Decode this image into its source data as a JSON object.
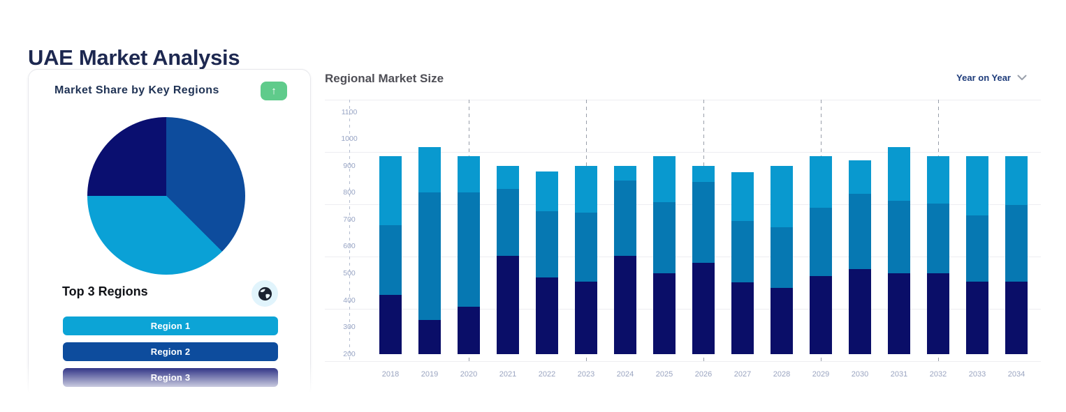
{
  "page": {
    "title": "UAE Market Analysis"
  },
  "market_share_card": {
    "title": "Market Share by Key Regions",
    "expand_icon": "↑",
    "subtitle": "Top 3 Regions",
    "region_buttons": [
      {
        "label": "Region 1",
        "color": "#0ca4d6"
      },
      {
        "label": "Region 2",
        "color": "#0d4c9d"
      },
      {
        "label": "Region 3",
        "color": "#0a0f70"
      }
    ]
  },
  "market_size_panel": {
    "title": "Regional Market Size",
    "dropdown_label": "Year on Year"
  },
  "colors": {
    "heading_navy": "#1d2850",
    "green_button": "#5fcb8b",
    "globe_bg": "#e1f4fc",
    "pie_blue": "#0d4c9d",
    "pie_cyan": "#0aa1d6",
    "pie_navy": "#0a0f70",
    "bar_cyan": "#0999cf",
    "bar_blue": "#0678b2",
    "bar_navy": "#0a0e68",
    "axis_label": "#97a4c4",
    "gridline": "#ededf1"
  },
  "chart_data": [
    {
      "type": "pie",
      "title": "Market Share by Key Regions",
      "legend_position": "none",
      "slices_clockwise_from_top": [
        {
          "label": "Region 2",
          "percent": 37.5,
          "color": "#0d4c9d"
        },
        {
          "label": "Region 1",
          "percent": 37.5,
          "color": "#0aa1d6"
        },
        {
          "label": "Region 3",
          "percent": 25.0,
          "color": "#0a0f70"
        }
      ]
    },
    {
      "type": "bar",
      "stacked": true,
      "title": "Regional Market Size",
      "xlabel": "",
      "ylabel": "",
      "baseline": 200,
      "ylim": [
        200,
        1100
      ],
      "y_ticks": [
        200,
        300,
        400,
        500,
        600,
        700,
        800,
        900,
        1000,
        1100
      ],
      "grid": "light horizontal lines; dashed vertical year guides; dashed y-axis",
      "legend_position": "none",
      "dashed_guide_years": [
        "2020",
        "2023",
        "2026",
        "2029",
        "2032"
      ],
      "categories": [
        "2018",
        "2019",
        "2020",
        "2021",
        "2022",
        "2023",
        "2024",
        "2025",
        "2026",
        "2027",
        "2028",
        "2029",
        "2030",
        "2031",
        "2032",
        "2033",
        "2034"
      ],
      "series": [
        {
          "name": "bottom-segment-navy",
          "color": "#0a0e68",
          "values": [
            220,
            125,
            175,
            365,
            285,
            270,
            365,
            300,
            340,
            265,
            245,
            290,
            315,
            300,
            300,
            270,
            270
          ]
        },
        {
          "name": "middle-segment-blue",
          "color": "#0678b2",
          "values": [
            260,
            475,
            425,
            250,
            245,
            255,
            280,
            265,
            300,
            230,
            225,
            255,
            280,
            270,
            260,
            245,
            285
          ]
        },
        {
          "name": "top-segment-cyan",
          "color": "#0999cf",
          "values": [
            255,
            170,
            135,
            85,
            150,
            175,
            55,
            170,
            60,
            180,
            230,
            190,
            125,
            200,
            175,
            220,
            180
          ]
        }
      ],
      "stack_totals": [
        935,
        970,
        935,
        900,
        880,
        900,
        900,
        935,
        900,
        875,
        900,
        935,
        920,
        970,
        935,
        935,
        935
      ]
    }
  ]
}
